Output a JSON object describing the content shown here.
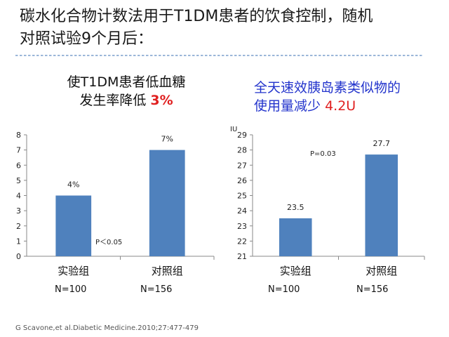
{
  "slide": {
    "title_line1": "碳水化合物计数法用于T1DM患者的饮食控制，随机",
    "title_line2": "对照试验9个月后：",
    "citation": "G Scavone,et al.Diabetic Medicine.2010;27:477-479"
  },
  "left_panel": {
    "subtitle_line1": "使T1DM患者低血糖",
    "subtitle_line2_prefix": "发生率降低",
    "subtitle_highlight": "3%",
    "n_labels": [
      "N=100",
      "N=156"
    ]
  },
  "right_panel": {
    "subtitle_line1": "全天速效胰岛素类似物的",
    "subtitle_line2_prefix": "使用量减少",
    "subtitle_highlight": "4.2U",
    "n_labels": [
      "N=100",
      "N=156"
    ]
  },
  "chart_data": [
    {
      "type": "bar",
      "categories": [
        "实验组",
        "对照组"
      ],
      "values": [
        4,
        7
      ],
      "data_labels": [
        "4%",
        "7%"
      ],
      "ylim": [
        0,
        8
      ],
      "yticks": [
        0,
        1,
        2,
        3,
        4,
        5,
        6,
        7,
        8
      ],
      "ylabel": "",
      "annotation": "P＜0.05",
      "bar_color": "#4f81bd",
      "grid": false
    },
    {
      "type": "bar",
      "categories": [
        "实验组",
        "对照组"
      ],
      "values": [
        23.5,
        27.7
      ],
      "data_labels": [
        "23.5",
        "27.7"
      ],
      "ylim": [
        21,
        29
      ],
      "yticks": [
        21,
        22,
        23,
        24,
        25,
        26,
        27,
        28,
        29
      ],
      "ylabel": "IU",
      "annotation": "P=0.03",
      "bar_color": "#4f81bd",
      "grid": false
    }
  ]
}
